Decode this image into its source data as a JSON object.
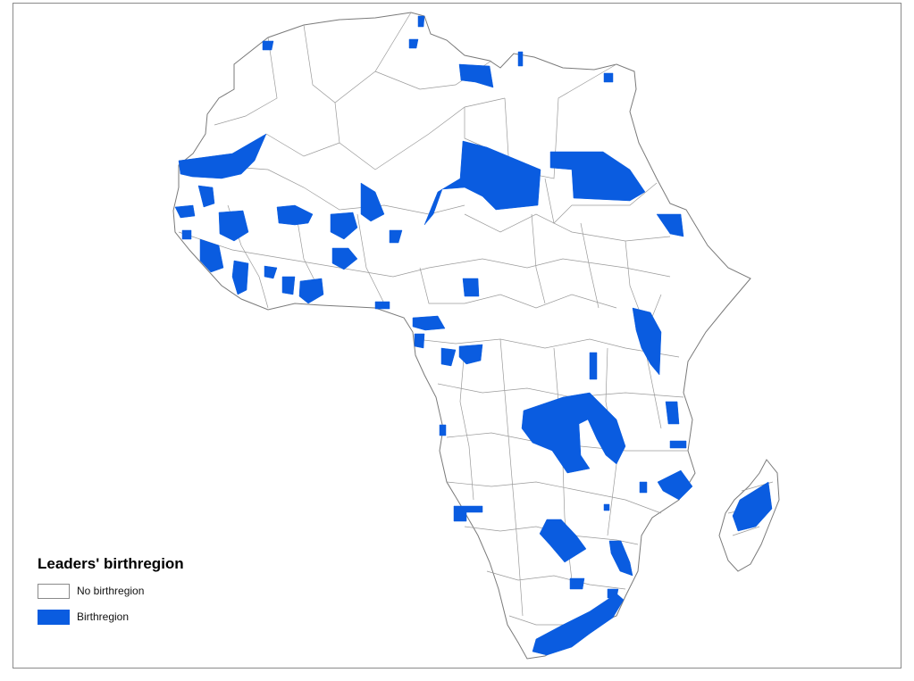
{
  "legend": {
    "title": "Leaders' birthregion",
    "items": [
      {
        "label": "No birthregion",
        "color": "#ffffff"
      },
      {
        "label": "Birthregion",
        "color": "#0a5ce0"
      }
    ]
  },
  "colors": {
    "land": "#ffffff",
    "border": "#7a7a7a",
    "highlight": "#0a5ce0",
    "frame": "#8a8a8a"
  }
}
